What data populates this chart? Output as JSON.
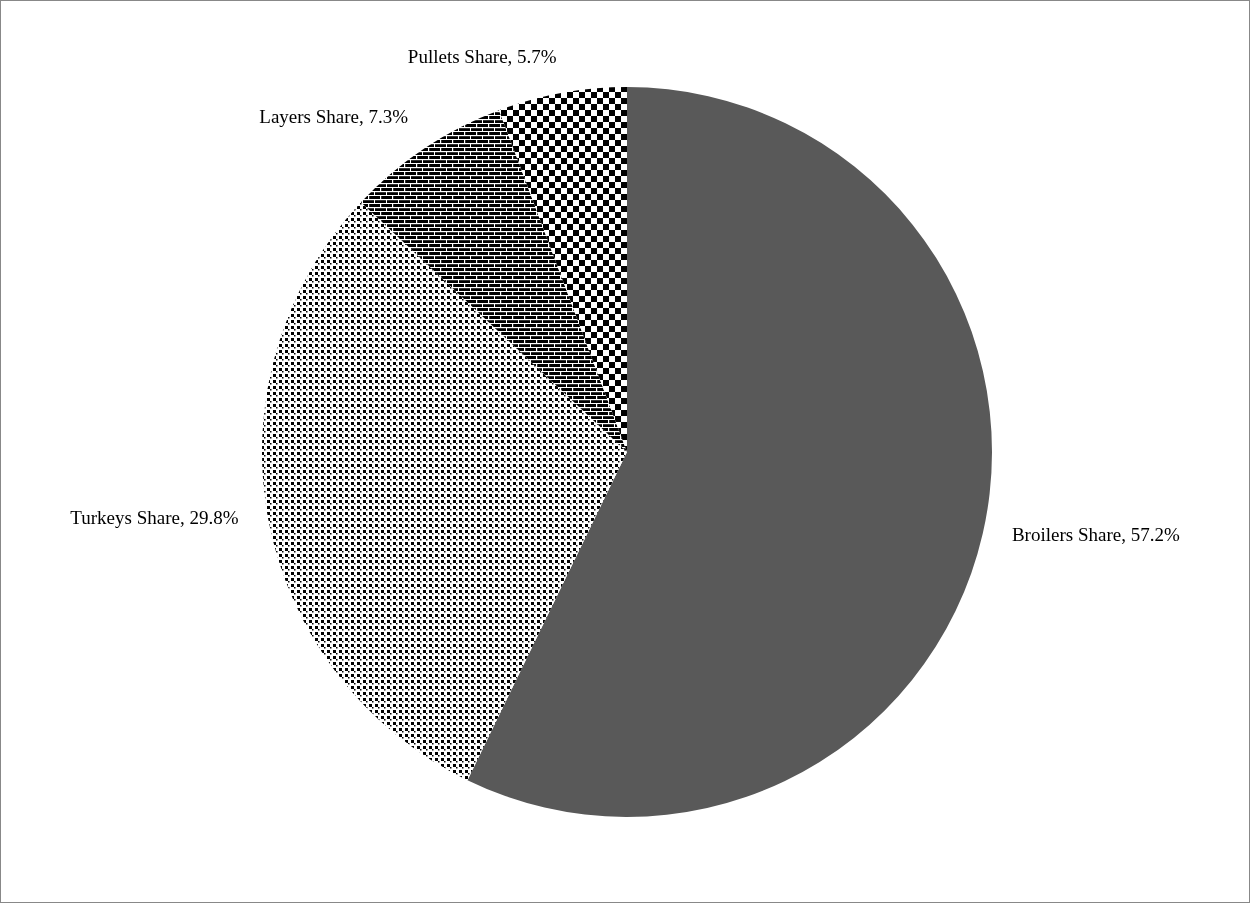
{
  "chart_data": {
    "type": "pie",
    "categories": [
      "Broilers Share",
      "Turkeys Share",
      "Layers Share",
      "Pullets Share"
    ],
    "values": [
      57.2,
      29.8,
      7.3,
      5.7
    ],
    "colors": [
      "#595959",
      "#000000",
      "#000000",
      "#000000"
    ],
    "value_labels": [
      "57.2%",
      "29.8%",
      "7.3%",
      "5.7%"
    ]
  }
}
